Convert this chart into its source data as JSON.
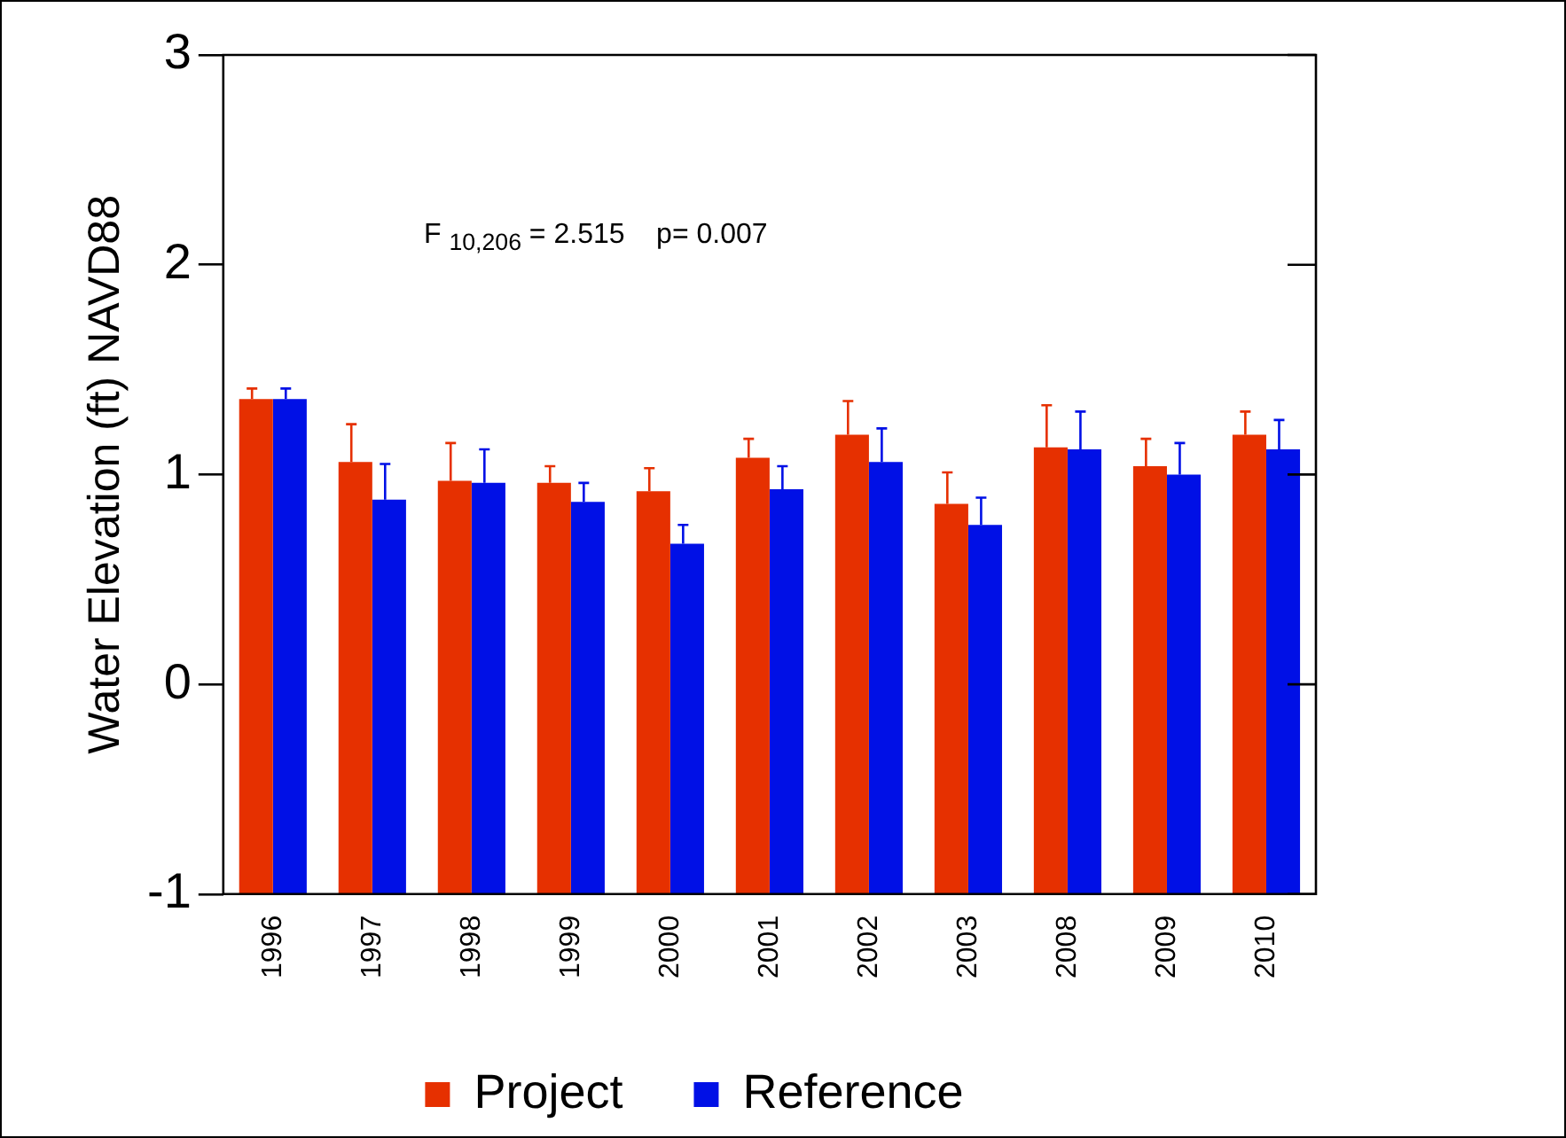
{
  "chart_data": {
    "type": "bar",
    "ylabel": "Water Elevation (ft) NAVD88",
    "categories": [
      "1996",
      "1997",
      "1998",
      "1999",
      "2000",
      "2001",
      "2002",
      "2003",
      "2008",
      "2009",
      "2010"
    ],
    "series": [
      {
        "name": "Project",
        "color": "#e63000",
        "base": [
          -1,
          -1,
          -1,
          -1,
          -1,
          -1,
          -1,
          -1,
          -1,
          -1,
          -1
        ],
        "values": [
          2.36,
          2.06,
          1.97,
          1.96,
          1.92,
          2.08,
          2.19,
          1.86,
          2.13,
          2.04,
          2.19
        ],
        "errors": [
          [
            1.36,
            1.41
          ],
          [
            1.06,
            1.24
          ],
          [
            0.97,
            1.15
          ],
          [
            0.96,
            1.04
          ],
          [
            0.92,
            1.03
          ],
          [
            1.08,
            1.17
          ],
          [
            1.19,
            1.35
          ],
          [
            0.86,
            1.01
          ],
          [
            1.13,
            1.33
          ],
          [
            1.04,
            1.17
          ],
          [
            1.19,
            1.3
          ]
        ]
      },
      {
        "name": "Reference",
        "color": "#0010e6",
        "base": [
          -1,
          -1,
          -1,
          -1,
          -1,
          -1,
          -1,
          -1,
          -1,
          -1,
          -1
        ],
        "values": [
          2.36,
          1.88,
          1.96,
          1.87,
          1.67,
          1.93,
          2.06,
          1.76,
          2.12,
          2.0,
          2.12
        ],
        "errors": [
          [
            1.36,
            1.41
          ],
          [
            0.88,
            1.05
          ],
          [
            0.96,
            1.12
          ],
          [
            0.87,
            0.96
          ],
          [
            0.67,
            0.76
          ],
          [
            0.93,
            1.04
          ],
          [
            1.06,
            1.22
          ],
          [
            0.76,
            0.89
          ],
          [
            1.12,
            1.3
          ],
          [
            1.0,
            1.15
          ],
          [
            1.12,
            1.26
          ]
        ]
      }
    ],
    "ylim": [
      -1,
      3
    ],
    "yticks": [
      -1,
      0,
      1,
      2,
      3
    ],
    "grid": false,
    "legend": "bottom",
    "annotations": [
      "F $_{10,206}$ = 2.515    p= 0.007"
    ]
  }
}
